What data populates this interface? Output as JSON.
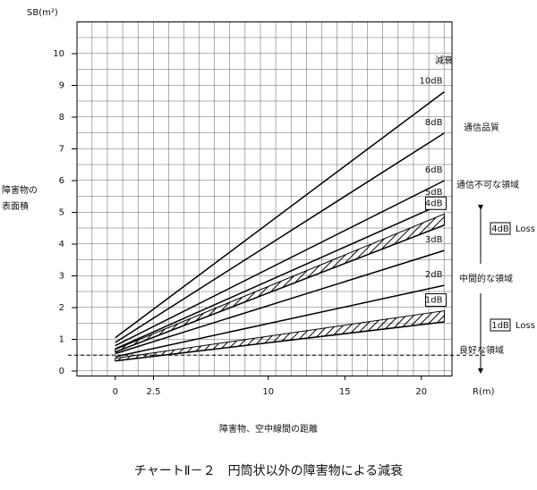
{
  "chart_data": {
    "type": "line",
    "title": "チャートⅡ－２　円筒状以外の障害物による減衰",
    "y_label": "SB(m²)",
    "y_desc": [
      "障害物の",
      "表面積"
    ],
    "x_label": "R(m)",
    "x_desc": "障害物、空中線間の距離",
    "legend_title": "減衰",
    "xlim": [
      -2.5,
      22
    ],
    "ylim": [
      0,
      11
    ],
    "xticks": [
      0,
      2.5,
      10,
      15,
      20
    ],
    "yticks": [
      0,
      1,
      2,
      3,
      4,
      5,
      6,
      7,
      8,
      9,
      10
    ],
    "reference_line": 0.5,
    "x": [
      0,
      21.5
    ],
    "series": [
      {
        "name": "10dB",
        "color": "#000000",
        "values": [
          1.05,
          8.8
        ]
      },
      {
        "name": "8dB",
        "color": "#000000",
        "values": [
          0.9,
          7.5
        ]
      },
      {
        "name": "6dB",
        "color": "#000000",
        "values": [
          0.8,
          6.0
        ]
      },
      {
        "name": "5dB",
        "color": "#000000",
        "values": [
          0.7,
          5.3
        ]
      },
      {
        "name": "4dB",
        "color": "#000000",
        "values": [
          0.6,
          4.6
        ],
        "upper": [
          0.68,
          4.95
        ],
        "boxed": true
      },
      {
        "name": "3dB",
        "color": "#000000",
        "values": [
          0.55,
          3.8
        ]
      },
      {
        "name": "2dB",
        "color": "#000000",
        "values": [
          0.45,
          2.7
        ]
      },
      {
        "name": "1dB",
        "color": "#000000",
        "values": [
          0.32,
          1.55
        ],
        "upper": [
          0.4,
          1.9
        ],
        "boxed": true
      }
    ],
    "annotations": [
      "通信品質",
      "通信不可な領域",
      "中間的な領域",
      "良好な領域"
    ],
    "loss_labels": [
      {
        "box": "4dB",
        "text": "Loss"
      },
      {
        "box": "1dB",
        "text": "Loss"
      }
    ]
  }
}
